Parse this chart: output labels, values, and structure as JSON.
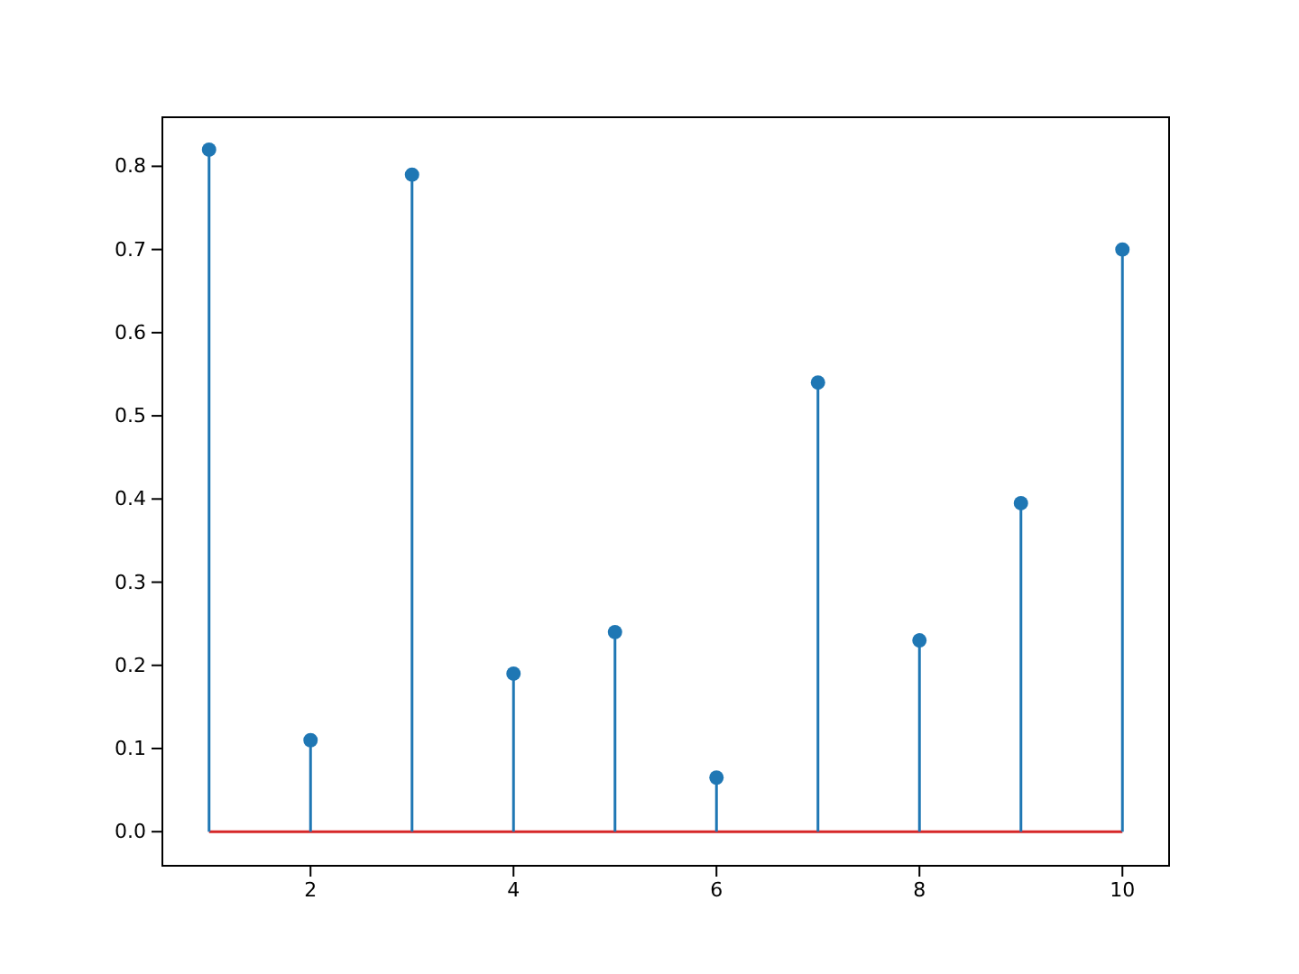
{
  "chart_data": {
    "type": "lollipop",
    "x": [
      1,
      2,
      3,
      4,
      5,
      6,
      7,
      8,
      9,
      10
    ],
    "values": [
      0.82,
      0.11,
      0.79,
      0.19,
      0.24,
      0.065,
      0.54,
      0.23,
      0.395,
      0.7
    ],
    "color": "#1f77b4",
    "marker": "circle",
    "xlim": [
      0.54,
      10.46
    ],
    "xticks": [
      2,
      4,
      6,
      8,
      10
    ],
    "ylim": [
      -0.041,
      0.859
    ],
    "yticks": [
      {
        "value": 0,
        "label": "0.0"
      },
      0.1,
      0.2,
      0.3,
      0.4,
      0.5,
      0.6,
      0.7,
      0.8
    ],
    "ref_lines": [
      {
        "axis": "y",
        "value": 0,
        "color": "#d62728"
      }
    ],
    "grid": false
  }
}
